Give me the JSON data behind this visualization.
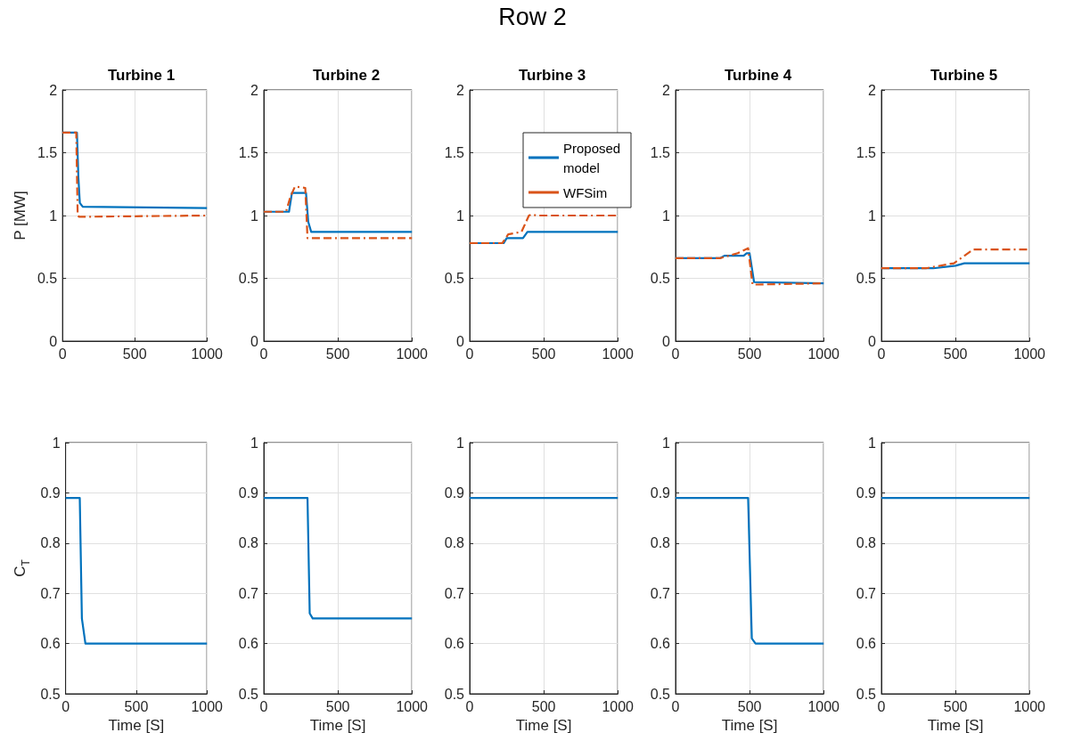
{
  "chart_data": [
    {
      "type": "line",
      "title": "Turbine 1",
      "ylabel": "P [MW]",
      "annotations": [
        "Row 2"
      ],
      "xlim": [
        0,
        1000
      ],
      "xticks": [
        0,
        500,
        1000
      ],
      "ylim": [
        0,
        2
      ],
      "yticks": [
        0,
        0.5,
        1,
        1.5,
        2
      ],
      "grid": true,
      "marker": "none",
      "series": [
        {
          "color": "#0072bd",
          "line_style": "solid",
          "x": [
            0,
            100,
            110,
            120,
            140,
            1000
          ],
          "values": [
            1.66,
            1.66,
            1.3,
            1.1,
            1.07,
            1.06
          ]
        },
        {
          "color": "#d95319",
          "line_style": "dashed",
          "x": [
            0,
            95,
            105,
            115,
            1000
          ],
          "values": [
            1.66,
            1.66,
            1.0,
            0.99,
            1.0
          ]
        }
      ]
    },
    {
      "type": "line",
      "title": "Turbine 2",
      "xlim": [
        0,
        1000
      ],
      "xticks": [
        0,
        500,
        1000
      ],
      "ylim": [
        0,
        2
      ],
      "yticks": [
        0,
        0.5,
        1,
        1.5,
        2
      ],
      "grid": true,
      "marker": "none",
      "series": [
        {
          "color": "#0072bd",
          "line_style": "solid",
          "x": [
            0,
            170,
            190,
            285,
            300,
            320,
            1000
          ],
          "values": [
            1.03,
            1.03,
            1.18,
            1.18,
            0.95,
            0.87,
            0.87
          ]
        },
        {
          "color": "#d95319",
          "line_style": "dashed",
          "x": [
            0,
            150,
            180,
            210,
            280,
            295,
            310,
            1000
          ],
          "values": [
            1.03,
            1.03,
            1.15,
            1.23,
            1.22,
            0.82,
            0.82,
            0.82
          ]
        }
      ]
    },
    {
      "type": "line",
      "title": "Turbine 3",
      "legend": "top right",
      "xlim": [
        0,
        1000
      ],
      "xticks": [
        0,
        500,
        1000
      ],
      "ylim": [
        0,
        2
      ],
      "yticks": [
        0,
        0.5,
        1,
        1.5,
        2
      ],
      "grid": true,
      "marker": "none",
      "series": [
        {
          "name": "Proposed model",
          "color": "#0072bd",
          "line_style": "solid",
          "x": [
            0,
            230,
            250,
            360,
            390,
            1000
          ],
          "values": [
            0.78,
            0.78,
            0.82,
            0.82,
            0.87,
            0.87
          ]
        },
        {
          "name": "WFSim",
          "color": "#d95319",
          "line_style": "dashed",
          "x": [
            0,
            220,
            260,
            350,
            400,
            420,
            450,
            1000
          ],
          "values": [
            0.78,
            0.78,
            0.85,
            0.87,
            1.0,
            1.01,
            1.0,
            1.0
          ]
        }
      ]
    },
    {
      "type": "line",
      "title": "Turbine 4",
      "xlim": [
        0,
        1000
      ],
      "xticks": [
        0,
        500,
        1000
      ],
      "ylim": [
        0,
        2
      ],
      "yticks": [
        0,
        0.5,
        1,
        1.5,
        2
      ],
      "grid": true,
      "marker": "none",
      "series": [
        {
          "color": "#0072bd",
          "line_style": "solid",
          "x": [
            0,
            300,
            330,
            460,
            480,
            500,
            530,
            1000
          ],
          "values": [
            0.66,
            0.66,
            0.68,
            0.68,
            0.7,
            0.7,
            0.47,
            0.46
          ]
        },
        {
          "color": "#d95319",
          "line_style": "dashed",
          "x": [
            0,
            300,
            420,
            490,
            520,
            1000
          ],
          "values": [
            0.66,
            0.66,
            0.7,
            0.74,
            0.45,
            0.46
          ]
        }
      ]
    },
    {
      "type": "line",
      "title": "Turbine 5",
      "xlim": [
        0,
        1000
      ],
      "xticks": [
        0,
        500,
        1000
      ],
      "ylim": [
        0,
        2
      ],
      "yticks": [
        0,
        0.5,
        1,
        1.5,
        2
      ],
      "grid": true,
      "marker": "none",
      "series": [
        {
          "color": "#0072bd",
          "line_style": "solid",
          "x": [
            0,
            350,
            500,
            560,
            1000
          ],
          "values": [
            0.58,
            0.58,
            0.6,
            0.62,
            0.62
          ]
        },
        {
          "color": "#d95319",
          "line_style": "dashed",
          "x": [
            0,
            300,
            490,
            620,
            1000
          ],
          "values": [
            0.58,
            0.58,
            0.62,
            0.73,
            0.73
          ]
        }
      ]
    },
    {
      "type": "line",
      "xlabel": "Time [S]",
      "ylabel": "C$_{T}$",
      "xlim": [
        0,
        1000
      ],
      "xticks": [
        0,
        500,
        1000
      ],
      "ylim": [
        0.5,
        1
      ],
      "yticks": [
        0.5,
        0.6,
        0.7,
        0.8,
        0.9,
        1
      ],
      "grid": true,
      "marker": "none",
      "series": [
        {
          "color": "#0072bd",
          "line_style": "solid",
          "x": [
            0,
            100,
            115,
            140,
            1000
          ],
          "values": [
            0.89,
            0.89,
            0.65,
            0.6,
            0.6
          ]
        }
      ]
    },
    {
      "type": "line",
      "xlabel": "Time [S]",
      "xlim": [
        0,
        1000
      ],
      "xticks": [
        0,
        500,
        1000
      ],
      "ylim": [
        0.5,
        1
      ],
      "yticks": [
        0.5,
        0.6,
        0.7,
        0.8,
        0.9,
        1
      ],
      "grid": true,
      "marker": "none",
      "series": [
        {
          "color": "#0072bd",
          "line_style": "solid",
          "x": [
            0,
            295,
            310,
            330,
            1000
          ],
          "values": [
            0.89,
            0.89,
            0.66,
            0.65,
            0.65
          ]
        }
      ]
    },
    {
      "type": "line",
      "xlabel": "Time [S]",
      "xlim": [
        0,
        1000
      ],
      "xticks": [
        0,
        500,
        1000
      ],
      "ylim": [
        0.5,
        1
      ],
      "yticks": [
        0.5,
        0.6,
        0.7,
        0.8,
        0.9,
        1
      ],
      "grid": true,
      "marker": "none",
      "series": [
        {
          "color": "#0072bd",
          "line_style": "solid",
          "x": [
            0,
            1000
          ],
          "values": [
            0.89,
            0.89
          ]
        }
      ]
    },
    {
      "type": "line",
      "xlabel": "Time [S]",
      "xlim": [
        0,
        1000
      ],
      "xticks": [
        0,
        500,
        1000
      ],
      "ylim": [
        0.5,
        1
      ],
      "yticks": [
        0.5,
        0.6,
        0.7,
        0.8,
        0.9,
        1
      ],
      "grid": true,
      "marker": "none",
      "series": [
        {
          "color": "#0072bd",
          "line_style": "solid",
          "x": [
            0,
            490,
            515,
            540,
            1000
          ],
          "values": [
            0.89,
            0.89,
            0.61,
            0.6,
            0.6
          ]
        }
      ]
    },
    {
      "type": "line",
      "xlabel": "Time [S]",
      "xlim": [
        0,
        1000
      ],
      "xticks": [
        0,
        500,
        1000
      ],
      "ylim": [
        0.5,
        1
      ],
      "yticks": [
        0.5,
        0.6,
        0.7,
        0.8,
        0.9,
        1
      ],
      "grid": true,
      "marker": "none",
      "series": [
        {
          "color": "#0072bd",
          "line_style": "solid",
          "x": [
            0,
            1000
          ],
          "values": [
            0.89,
            0.89
          ]
        }
      ]
    }
  ]
}
